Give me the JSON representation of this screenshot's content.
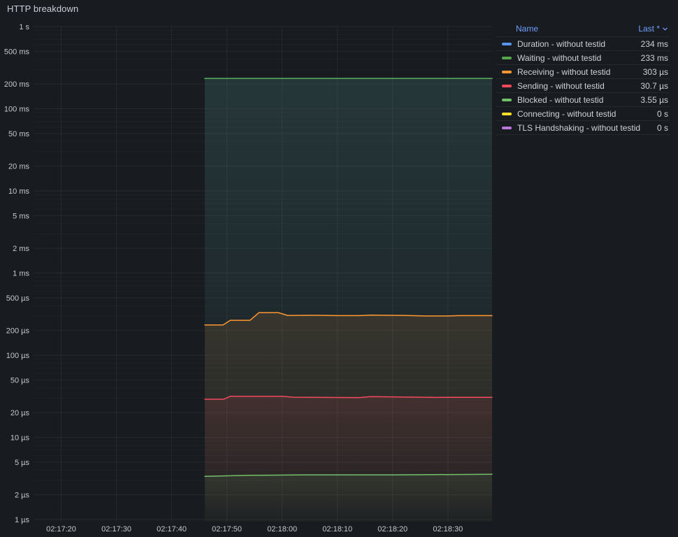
{
  "panel": {
    "title": "HTTP breakdown"
  },
  "legend": {
    "name_header": "Name",
    "last_header": "Last *"
  },
  "colors": {
    "background": "#181b1f",
    "grid_major": "rgba(204,204,220,0.08)",
    "grid_minor": "rgba(204,204,220,0.045)",
    "axis_text": "#c7c8cd",
    "link": "#6e9fff"
  },
  "chart_data": {
    "type": "line",
    "title": "HTTP breakdown",
    "x_axis": {
      "unit": "time",
      "base": "02:17:00",
      "range_seconds": [
        15,
        98
      ],
      "tick_seconds": [
        20,
        30,
        40,
        50,
        60,
        70,
        80,
        90
      ],
      "tick_labels": [
        "02:17:20",
        "02:17:30",
        "02:17:40",
        "02:17:50",
        "02:18:00",
        "02:18:10",
        "02:18:20",
        "02:18:30"
      ]
    },
    "y_axis": {
      "scale": "log10",
      "unit": "seconds",
      "range": [
        1e-06,
        1
      ],
      "ticks": [
        [
          1,
          "1 s"
        ],
        [
          0.5,
          "500 ms"
        ],
        [
          0.2,
          "200 ms"
        ],
        [
          0.1,
          "100 ms"
        ],
        [
          0.05,
          "50 ms"
        ],
        [
          0.02,
          "20 ms"
        ],
        [
          0.01,
          "10 ms"
        ],
        [
          0.005,
          "5 ms"
        ],
        [
          0.002,
          "2 ms"
        ],
        [
          0.001,
          "1 ms"
        ],
        [
          0.0005,
          "500 µs"
        ],
        [
          0.0002,
          "200 µs"
        ],
        [
          0.0001,
          "100 µs"
        ],
        [
          5e-05,
          "50 µs"
        ],
        [
          2e-05,
          "20 µs"
        ],
        [
          1e-05,
          "10 µs"
        ],
        [
          5e-06,
          "5 µs"
        ],
        [
          2e-06,
          "2 µs"
        ],
        [
          1e-06,
          "1 µs"
        ]
      ]
    },
    "legend_position": "right-table",
    "grid": true,
    "series": [
      {
        "name": "Duration - without testid",
        "color": "#5794F2",
        "last": "234 ms",
        "points": [
          [
            46,
            0.234
          ],
          [
            98,
            0.234
          ]
        ]
      },
      {
        "name": "Waiting - without testid",
        "color": "#56A64B",
        "last": "233 ms",
        "points": [
          [
            46,
            0.233
          ],
          [
            98,
            0.233
          ]
        ]
      },
      {
        "name": "Receiving - without testid",
        "color": "#FF9830",
        "last": "303 µs",
        "points": [
          [
            46,
            0.000233
          ],
          [
            49.3,
            0.000233
          ],
          [
            50.6,
            0.000266
          ],
          [
            54.2,
            0.000266
          ],
          [
            55.8,
            0.00033
          ],
          [
            59.3,
            0.00033
          ],
          [
            61,
            0.000305
          ],
          [
            66,
            0.000306
          ],
          [
            70,
            0.000303
          ],
          [
            74,
            0.000303
          ],
          [
            76,
            0.000308
          ],
          [
            82,
            0.000305
          ],
          [
            86,
            0.0003
          ],
          [
            90,
            0.0003
          ],
          [
            92,
            0.000303
          ],
          [
            98,
            0.000303
          ]
        ]
      },
      {
        "name": "Sending - without testid",
        "color": "#F2495C",
        "last": "30.7 µs",
        "points": [
          [
            46,
            2.91e-05
          ],
          [
            49.4,
            2.91e-05
          ],
          [
            50.6,
            3.16e-05
          ],
          [
            60,
            3.16e-05
          ],
          [
            62,
            3.08e-05
          ],
          [
            74,
            3.05e-05
          ],
          [
            76,
            3.13e-05
          ],
          [
            88,
            3.06e-05
          ],
          [
            89.5,
            3.07e-05
          ],
          [
            98,
            3.07e-05
          ]
        ]
      },
      {
        "name": "Blocked - without testid",
        "color": "#73BF69",
        "last": "3.55 µs",
        "points": [
          [
            46,
            3.35e-06
          ],
          [
            54,
            3.45e-06
          ],
          [
            64,
            3.5e-06
          ],
          [
            80,
            3.5e-06
          ],
          [
            98,
            3.55e-06
          ]
        ]
      },
      {
        "name": "Connecting - without testid",
        "color": "#FADE2A",
        "last": "0 s",
        "points": []
      },
      {
        "name": "TLS Handshaking - without testid",
        "color": "#B877D9",
        "last": "0 s",
        "points": []
      }
    ]
  }
}
